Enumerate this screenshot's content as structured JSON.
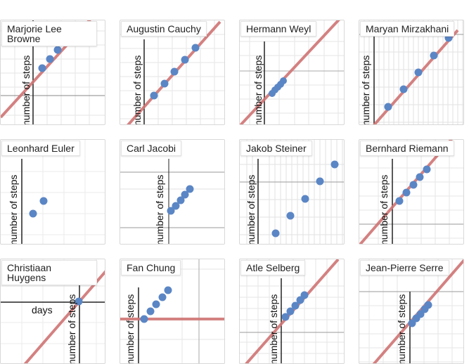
{
  "gallery": {
    "colors": {
      "point": "#5b86c5",
      "line": "#d07474",
      "grid": "#e6e6e6",
      "axis": "#222222"
    },
    "cards": [
      {
        "name": "Marjorie Lee Browne",
        "ylabel": "number of steps"
      },
      {
        "name": "Augustin Cauchy",
        "ylabel": "number of steps"
      },
      {
        "name": "Hermann Weyl",
        "ylabel": "number of steps"
      },
      {
        "name": "Maryan Mirzakhani",
        "ylabel": "number of steps"
      },
      {
        "name": "Leonhard Euler",
        "ylabel": "number of steps"
      },
      {
        "name": "Carl Jacobi",
        "ylabel": "number of steps"
      },
      {
        "name": "Jakob Steiner",
        "ylabel": "number of steps"
      },
      {
        "name": "Bernhard Riemann",
        "ylabel": "number of steps"
      },
      {
        "name": "Christiaan Huygens",
        "ylabel": "number of steps",
        "xlabel": "days"
      },
      {
        "name": "Fan Chung",
        "ylabel": "number of steps"
      },
      {
        "name": "Atle Selberg",
        "ylabel": "number of steps"
      },
      {
        "name": "Jean-Pierre Serre",
        "ylabel": "number of steps"
      }
    ]
  }
}
